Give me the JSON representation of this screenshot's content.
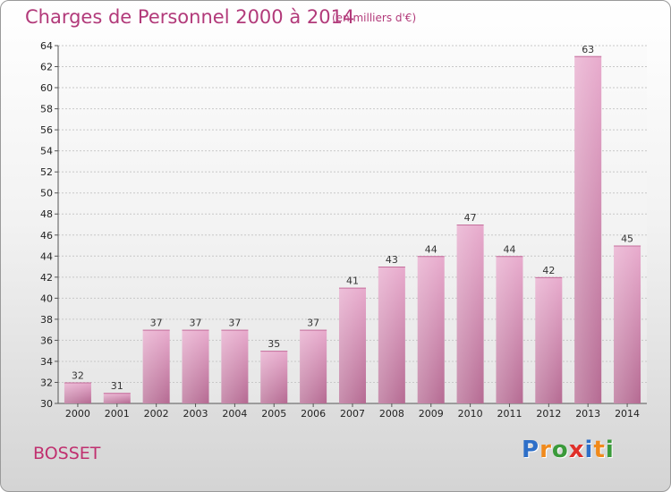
{
  "header": {
    "title": "Charges de Personnel 2000 à 2014",
    "subtitle": "(en milliers d'€)"
  },
  "footer": {
    "commune": "BOSSET",
    "logo_letters": [
      {
        "ch": "P",
        "color": "#2e6fc8"
      },
      {
        "ch": "r",
        "color": "#f08a1c"
      },
      {
        "ch": "o",
        "color": "#3a9a3a"
      },
      {
        "ch": "x",
        "color": "#e0302a"
      },
      {
        "ch": "i",
        "color": "#2e6fc8"
      },
      {
        "ch": "t",
        "color": "#f08a1c"
      },
      {
        "ch": "i",
        "color": "#3a9a3a"
      }
    ]
  },
  "chart_data": {
    "type": "bar",
    "title": "Charges de Personnel 2000 à 2014",
    "subtitle": "(en milliers d'€)",
    "categories": [
      "2000",
      "2001",
      "2002",
      "2003",
      "2004",
      "2005",
      "2006",
      "2007",
      "2008",
      "2009",
      "2010",
      "2011",
      "2012",
      "2013",
      "2014"
    ],
    "values": [
      32,
      31,
      37,
      37,
      37,
      35,
      37,
      41,
      43,
      44,
      47,
      44,
      42,
      63,
      45
    ],
    "ylim": [
      30,
      64
    ],
    "yticks": [
      30,
      32,
      34,
      36,
      38,
      40,
      42,
      44,
      46,
      48,
      50,
      52,
      54,
      56,
      58,
      60,
      62,
      64
    ],
    "grid": true,
    "bar_color": "#d98bb5"
  }
}
